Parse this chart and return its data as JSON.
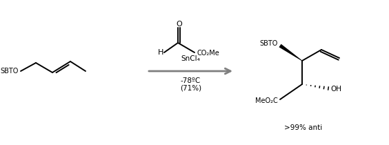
{
  "background_color": "#ffffff",
  "arrow_color": "#7f7f7f",
  "line_color": "#000000",
  "fig_width": 5.64,
  "fig_height": 2.1,
  "dpi": 100,
  "reagent_above": "SnCl₄",
  "reagent_below1": "-78ºC",
  "reagent_below2": "(71%)",
  "reactant_label": "SBTO",
  "aldehyde_label_h": "H",
  "aldehyde_label_co2me": "CO₂Me",
  "product_label_sbto": "SBTO",
  "product_label_meo2c": "MeO₂C",
  "product_label_oh": "OH",
  "product_stereo_label": ">99% anti"
}
